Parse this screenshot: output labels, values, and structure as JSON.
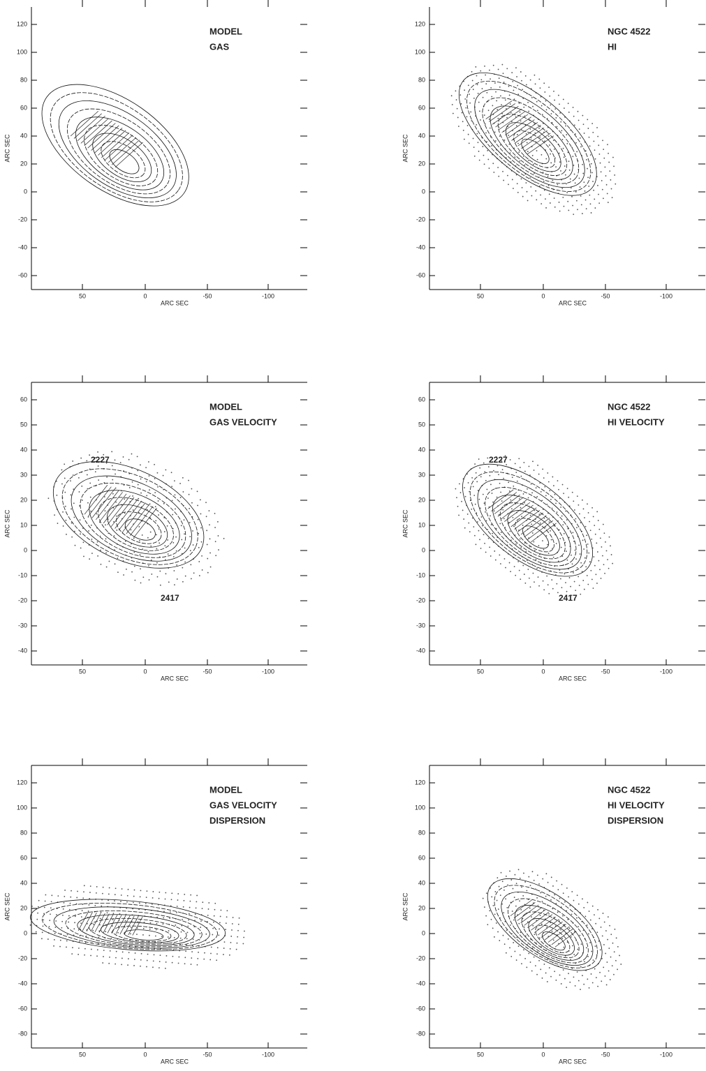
{
  "panels": [
    {
      "title": [
        "MODEL",
        "GAS"
      ],
      "x_label": "ARC SEC",
      "y_label": "ARC SEC",
      "x_ticks": [
        "50",
        "0",
        "-50",
        "-100"
      ],
      "y_ticks": [
        "120",
        "100",
        "80",
        "60",
        "40",
        "20",
        "0",
        "-20",
        "-40",
        "-60"
      ],
      "annotations": []
    },
    {
      "title": [
        "NGC 4522",
        "HI"
      ],
      "x_label": "ARC SEC",
      "y_label": "ARC SEC",
      "x_ticks": [
        "50",
        "0",
        "-50",
        "-100"
      ],
      "y_ticks": [
        "120",
        "100",
        "80",
        "60",
        "40",
        "20",
        "0",
        "-20",
        "-40",
        "-60"
      ],
      "annotations": []
    },
    {
      "title": [
        "MODEL",
        "GAS VELOCITY"
      ],
      "x_label": "ARC SEC",
      "y_label": "ARC SEC",
      "x_ticks": [
        "50",
        "0",
        "-50",
        "-100"
      ],
      "y_ticks": [
        "60",
        "50",
        "40",
        "30",
        "20",
        "10",
        "0",
        "-10",
        "-20",
        "-30",
        "-40"
      ],
      "annotations": [
        "2227",
        "2417"
      ]
    },
    {
      "title": [
        "NGC 4522",
        "HI VELOCITY"
      ],
      "x_label": "ARC SEC",
      "y_label": "ARC SEC",
      "x_ticks": [
        "50",
        "0",
        "-50",
        "-100"
      ],
      "y_ticks": [
        "60",
        "50",
        "40",
        "30",
        "20",
        "10",
        "0",
        "-10",
        "-20",
        "-30",
        "-40"
      ],
      "annotations": [
        "2227",
        "2417"
      ]
    },
    {
      "title": [
        "MODEL",
        "GAS VELOCITY",
        "DISPERSION"
      ],
      "x_label": "ARC SEC",
      "y_label": "ARC SEC",
      "x_ticks": [
        "50",
        "0",
        "-50",
        "-100"
      ],
      "y_ticks": [
        "120",
        "100",
        "80",
        "60",
        "40",
        "20",
        "0",
        "-20",
        "-40",
        "-60",
        "-80"
      ],
      "annotations": []
    },
    {
      "title": [
        "NGC 4522",
        "HI VELOCITY",
        "DISPERSION"
      ],
      "x_label": "ARC SEC",
      "y_label": "ARC SEC",
      "x_ticks": [
        "50",
        "0",
        "-50",
        "-100"
      ],
      "y_ticks": [
        "120",
        "100",
        "80",
        "60",
        "40",
        "20",
        "0",
        "-20",
        "-40",
        "-60",
        "-80"
      ],
      "annotations": []
    }
  ]
}
